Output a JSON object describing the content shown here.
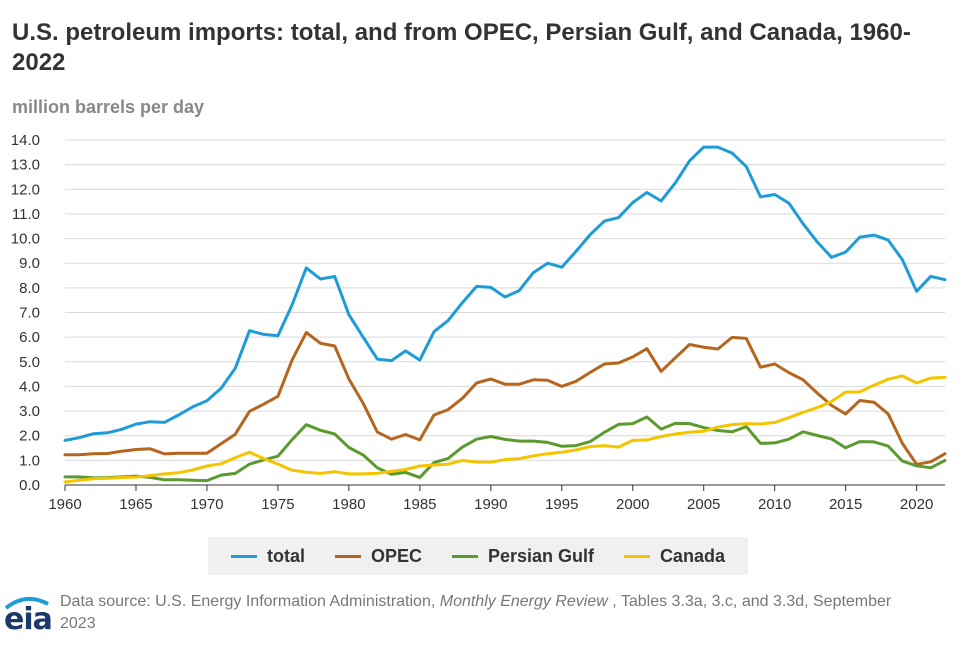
{
  "title": "U.S. petroleum imports: total, and from OPEC, Persian Gulf, and Canada, 1960-2022",
  "units_label": "million barrels per day",
  "footer": {
    "prefix": "Data source: U.S. Energy Information Administration, ",
    "publication": "Monthly Energy Review",
    "suffix": " , Tables 3.3a, 3.c, and 3.3d, September 2023",
    "logo_text": "eia"
  },
  "chart_data": {
    "type": "line",
    "x": [
      1960,
      1961,
      1962,
      1963,
      1964,
      1965,
      1966,
      1967,
      1968,
      1969,
      1970,
      1971,
      1972,
      1973,
      1974,
      1975,
      1976,
      1977,
      1978,
      1979,
      1980,
      1981,
      1982,
      1983,
      1984,
      1985,
      1986,
      1987,
      1988,
      1989,
      1990,
      1991,
      1992,
      1993,
      1994,
      1995,
      1996,
      1997,
      1998,
      1999,
      2000,
      2001,
      2002,
      2003,
      2004,
      2005,
      2006,
      2007,
      2008,
      2009,
      2010,
      2011,
      2012,
      2013,
      2014,
      2015,
      2016,
      2017,
      2018,
      2019,
      2020,
      2021,
      2022
    ],
    "xlim": [
      1960,
      2022
    ],
    "ylim": [
      0,
      14
    ],
    "x_ticks": [
      "1960",
      "1965",
      "1970",
      "1975",
      "1980",
      "1985",
      "1990",
      "1995",
      "2000",
      "2005",
      "2010",
      "2015",
      "2020"
    ],
    "y_ticks": [
      "0.0",
      "1.0",
      "2.0",
      "3.0",
      "4.0",
      "5.0",
      "6.0",
      "7.0",
      "8.0",
      "9.0",
      "10.0",
      "11.0",
      "12.0",
      "13.0",
      "14.0"
    ],
    "grid": "horizontal",
    "legend_position": "bottom",
    "series": [
      {
        "name": "total",
        "color": "#1e9cd7",
        "values": [
          1.81,
          1.92,
          2.08,
          2.12,
          2.26,
          2.47,
          2.57,
          2.54,
          2.84,
          3.17,
          3.42,
          3.93,
          4.74,
          6.26,
          6.11,
          6.06,
          7.31,
          8.81,
          8.36,
          8.46,
          6.91,
          6.0,
          5.11,
          5.05,
          5.44,
          5.07,
          6.22,
          6.68,
          7.4,
          8.06,
          8.02,
          7.63,
          7.89,
          8.62,
          9.0,
          8.84,
          9.48,
          10.16,
          10.71,
          10.85,
          11.46,
          11.87,
          11.53,
          12.26,
          13.15,
          13.71,
          13.71,
          13.47,
          12.92,
          11.69,
          11.79,
          11.44,
          10.6,
          9.86,
          9.24,
          9.45,
          10.06,
          10.14,
          9.94,
          9.14,
          7.86,
          8.47,
          8.33
        ]
      },
      {
        "name": "OPEC",
        "color": "#b5651d",
        "values": [
          1.23,
          1.23,
          1.27,
          1.28,
          1.37,
          1.44,
          1.47,
          1.26,
          1.29,
          1.29,
          1.29,
          1.67,
          2.06,
          2.99,
          3.28,
          3.6,
          5.07,
          6.19,
          5.75,
          5.64,
          4.3,
          3.32,
          2.15,
          1.86,
          2.05,
          1.83,
          2.84,
          3.06,
          3.52,
          4.14,
          4.3,
          4.09,
          4.09,
          4.27,
          4.25,
          4.0,
          4.21,
          4.57,
          4.91,
          4.95,
          5.2,
          5.53,
          4.61,
          5.16,
          5.7,
          5.59,
          5.52,
          5.99,
          5.95,
          4.78,
          4.91,
          4.56,
          4.27,
          3.73,
          3.23,
          2.88,
          3.43,
          3.36,
          2.88,
          1.69,
          0.84,
          0.94,
          1.27
        ]
      },
      {
        "name": "Persian Gulf",
        "color": "#5a9a2e",
        "values": [
          0.33,
          0.33,
          0.29,
          0.3,
          0.33,
          0.36,
          0.31,
          0.21,
          0.21,
          0.19,
          0.18,
          0.4,
          0.47,
          0.85,
          1.02,
          1.17,
          1.84,
          2.45,
          2.22,
          2.07,
          1.52,
          1.22,
          0.7,
          0.44,
          0.51,
          0.31,
          0.91,
          1.08,
          1.54,
          1.86,
          1.97,
          1.85,
          1.78,
          1.78,
          1.73,
          1.57,
          1.6,
          1.76,
          2.14,
          2.46,
          2.49,
          2.76,
          2.27,
          2.5,
          2.49,
          2.33,
          2.21,
          2.16,
          2.37,
          1.69,
          1.71,
          1.86,
          2.16,
          2.01,
          1.87,
          1.51,
          1.76,
          1.75,
          1.58,
          0.97,
          0.78,
          0.7,
          1.0
        ]
      },
      {
        "name": "Canada",
        "color": "#f5c400",
        "values": [
          0.12,
          0.19,
          0.25,
          0.27,
          0.3,
          0.32,
          0.38,
          0.45,
          0.5,
          0.61,
          0.77,
          0.86,
          1.11,
          1.33,
          1.07,
          0.85,
          0.6,
          0.52,
          0.47,
          0.54,
          0.45,
          0.45,
          0.48,
          0.55,
          0.63,
          0.77,
          0.81,
          0.85,
          1.0,
          0.93,
          0.93,
          1.03,
          1.07,
          1.18,
          1.27,
          1.33,
          1.42,
          1.56,
          1.6,
          1.54,
          1.81,
          1.83,
          1.97,
          2.07,
          2.14,
          2.18,
          2.35,
          2.45,
          2.49,
          2.47,
          2.54,
          2.73,
          2.95,
          3.14,
          3.39,
          3.77,
          3.78,
          4.05,
          4.29,
          4.43,
          4.14,
          4.34,
          4.37
        ]
      }
    ]
  }
}
